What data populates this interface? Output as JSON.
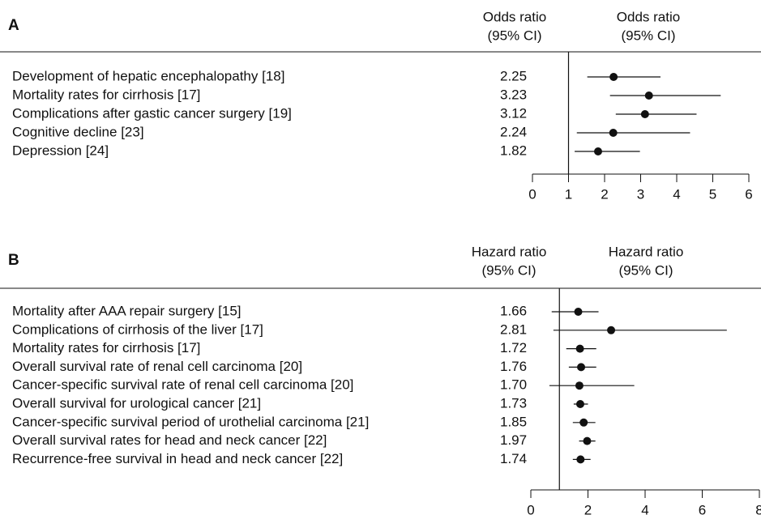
{
  "chart_data": [
    {
      "type": "forest",
      "title": "A",
      "label_header": [
        "Odds ratio",
        "(95% CI)"
      ],
      "axis_header": [
        "Odds ratio",
        "(95% CI)"
      ],
      "categories": [
        "Development of hepatic encephalopathy [18]",
        "Mortality rates for cirrhosis [17]",
        "Complications after gastic cancer surgery [19]",
        "Cognitive decline [23]",
        "Depression [24]"
      ],
      "values": [
        2.25,
        3.23,
        3.12,
        2.24,
        1.82
      ],
      "value_labels": [
        "2.25",
        "3.23",
        "3.12",
        "2.24",
        "1.82"
      ],
      "ci_low": [
        1.52,
        2.15,
        2.31,
        1.23,
        1.17
      ],
      "ci_high": [
        3.55,
        5.22,
        4.55,
        4.37,
        2.98
      ],
      "reference": 1,
      "xlim": [
        0,
        6
      ],
      "xticks": [
        0,
        1,
        2,
        3,
        4,
        5,
        6
      ],
      "color": "#111111"
    },
    {
      "type": "forest",
      "title": "B",
      "label_header": [
        "Hazard ratio",
        "(95% CI)"
      ],
      "axis_header": [
        "Hazard ratio",
        "(95% CI)"
      ],
      "categories": [
        "Mortality after AAA repair surgery [15]",
        "Complications of cirrhosis of the liver [17]",
        "Mortality rates for cirrhosis [17]",
        "Overall survival rate of renal cell carcinoma [20]",
        "Cancer-specific survival rate of renal cell carcinoma [20]",
        "Overall survival for urological cancer [21]",
        "Cancer-specific survival period of urothelial carcinoma [21]",
        "Overall survival rates for head and neck cancer [22]",
        "Recurrence-free survival in head and neck cancer [22]"
      ],
      "values": [
        1.66,
        2.81,
        1.72,
        1.76,
        1.7,
        1.73,
        1.85,
        1.97,
        1.74
      ],
      "value_labels": [
        "1.66",
        "2.81",
        "1.72",
        "1.76",
        "1.70",
        "1.73",
        "1.85",
        "1.97",
        "1.74"
      ],
      "ci_low": [
        0.73,
        0.79,
        1.24,
        1.33,
        0.65,
        1.5,
        1.47,
        1.69,
        1.47
      ],
      "ci_high": [
        2.37,
        6.86,
        2.29,
        2.29,
        3.62,
        2.0,
        2.26,
        2.26,
        2.09
      ],
      "reference": 1,
      "xlim": [
        0,
        8
      ],
      "xticks": [
        0,
        2,
        4,
        6,
        8
      ],
      "color": "#111111"
    }
  ]
}
